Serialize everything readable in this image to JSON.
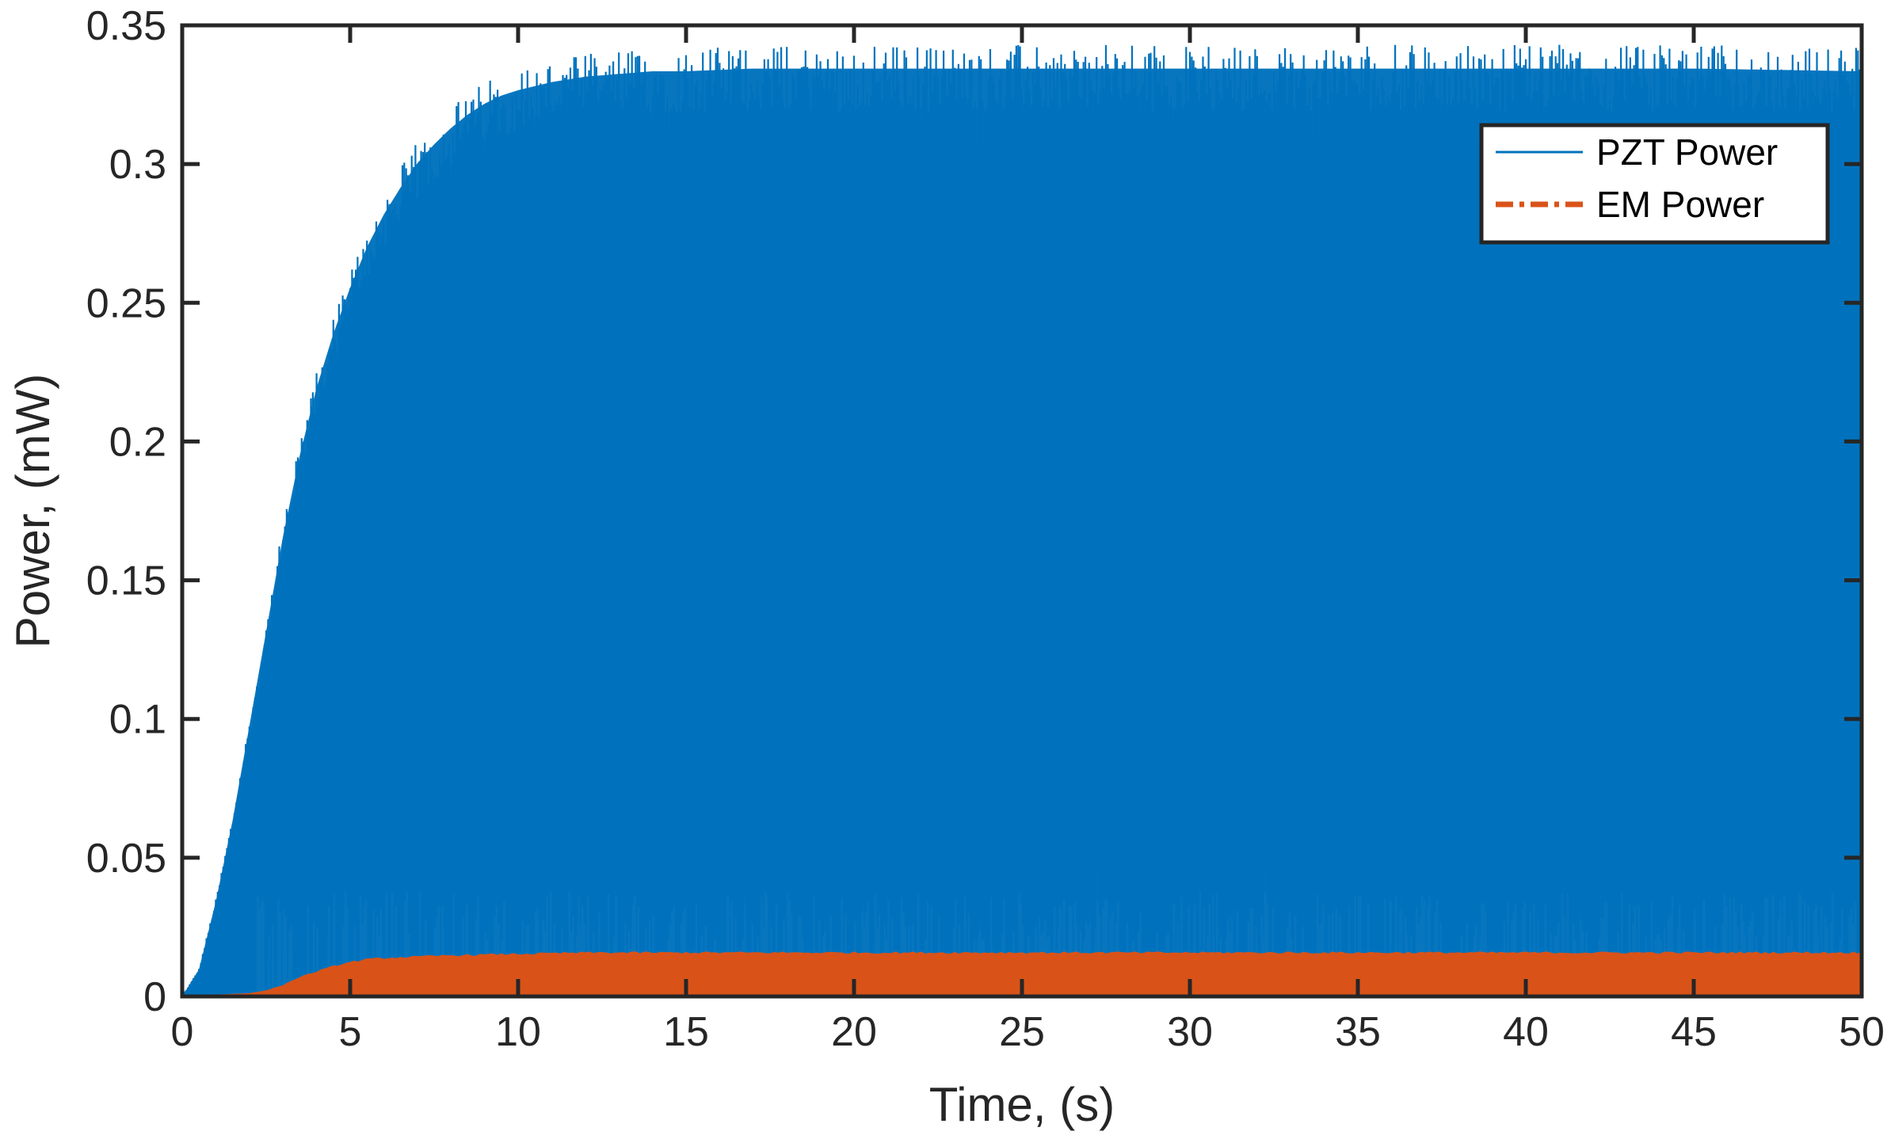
{
  "chart_data": {
    "type": "line",
    "xlabel": "Time, (s)",
    "ylabel": "Power, (mW)",
    "xlim": [
      0,
      50
    ],
    "ylim": [
      0,
      0.35
    ],
    "x_ticks": [
      0,
      5,
      10,
      15,
      20,
      25,
      30,
      35,
      40,
      45,
      50
    ],
    "x_tick_labels": [
      "0",
      "5",
      "10",
      "15",
      "20",
      "25",
      "30",
      "35",
      "40",
      "45",
      "50"
    ],
    "y_ticks": [
      0,
      0.05,
      0.1,
      0.15,
      0.2,
      0.25,
      0.3,
      0.35
    ],
    "y_tick_labels": [
      "0",
      "0.05",
      "0.1",
      "0.15",
      "0.2",
      "0.25",
      "0.3",
      "0.35"
    ],
    "grid": false,
    "legend_position": "top-right",
    "series": [
      {
        "name": "PZT Power",
        "color": "#0072BD",
        "line_style": "solid",
        "note_envelope": "oscillating between 0 and upper envelope",
        "x": [
          0,
          0.5,
          1,
          1.5,
          2,
          2.5,
          3,
          3.5,
          4,
          4.5,
          5,
          5.5,
          6,
          6.5,
          7,
          7.5,
          8,
          8.5,
          9,
          9.5,
          10,
          11,
          12,
          13,
          14,
          15,
          17,
          20,
          25,
          30,
          35,
          40,
          45,
          50
        ],
        "y": [
          0,
          0.01,
          0.035,
          0.065,
          0.1,
          0.135,
          0.17,
          0.2,
          0.225,
          0.245,
          0.262,
          0.277,
          0.289,
          0.299,
          0.308,
          0.315,
          0.321,
          0.326,
          0.33,
          0.333,
          0.335,
          0.338,
          0.34,
          0.341,
          0.342,
          0.342,
          0.343,
          0.343,
          0.343,
          0.343,
          0.343,
          0.343,
          0.343,
          0.342
        ]
      },
      {
        "name": "EM Power",
        "color": "#D95319",
        "line_style": "dash-dot",
        "x": [
          0,
          1,
          2,
          2.5,
          3,
          3.5,
          4,
          4.5,
          5,
          5.5,
          6,
          7,
          8,
          10,
          12,
          15,
          20,
          25,
          30,
          35,
          40,
          45,
          50
        ],
        "y": [
          0,
          0.0005,
          0.001,
          0.002,
          0.004,
          0.007,
          0.009,
          0.011,
          0.0125,
          0.0135,
          0.014,
          0.0145,
          0.015,
          0.0155,
          0.016,
          0.016,
          0.016,
          0.016,
          0.016,
          0.016,
          0.016,
          0.016,
          0.016
        ]
      }
    ]
  }
}
